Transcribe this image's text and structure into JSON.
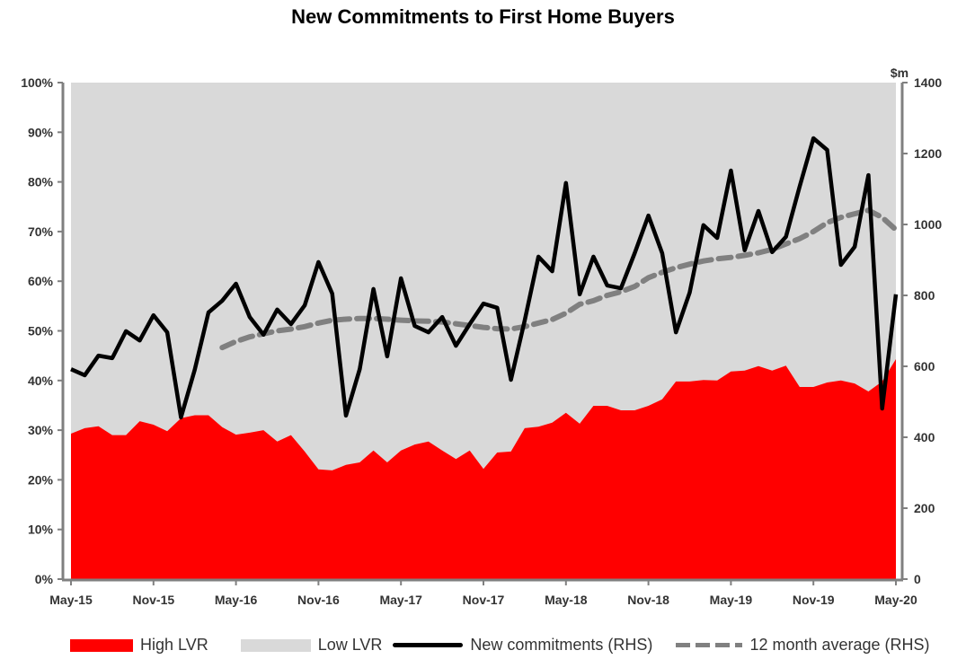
{
  "chart_data": {
    "type": "area",
    "title": "New Commitments to First Home Buyers",
    "right_axis_unit": "$m",
    "x_tick_labels": [
      "May-15",
      "Nov-15",
      "May-16",
      "Nov-16",
      "May-17",
      "Nov-17",
      "May-18",
      "Nov-18",
      "May-19",
      "Nov-19",
      "May-20"
    ],
    "x_start": "May-15",
    "x_end": "May-20",
    "left_ylim": [
      0,
      100
    ],
    "left_ticks": [
      "0%",
      "10%",
      "20%",
      "30%",
      "40%",
      "50%",
      "60%",
      "70%",
      "80%",
      "90%",
      "100%"
    ],
    "right_ylim": [
      0,
      1400
    ],
    "right_ticks": [
      "0",
      "200",
      "400",
      "600",
      "800",
      "1000",
      "1200",
      "1400"
    ],
    "grid": false,
    "legend_placement": "bottom",
    "colors": {
      "high_lvr": "#ff0000",
      "low_lvr": "#d9d9d9",
      "new_commitments": "#000000",
      "avg": "#808080",
      "axis": "#808080"
    },
    "series": [
      {
        "name": "High LVR",
        "axis": "left",
        "type": "area",
        "values": [
          29.3,
          30.4,
          30.8,
          29,
          29,
          31.8,
          31.1,
          29.8,
          32.4,
          33,
          33,
          30.6,
          29.1,
          29.5,
          30,
          27.7,
          29,
          25.7,
          22.1,
          21.9,
          23,
          23.5,
          25.9,
          23.5,
          25.9,
          27.1,
          27.7,
          25.9,
          24.2,
          25.9,
          22.2,
          25.5,
          25.7,
          30.4,
          30.7,
          31.5,
          33.5,
          31.3,
          34.9,
          34.9,
          34,
          34,
          34.9,
          36.2,
          39.8,
          39.8,
          40.1,
          40,
          41.8,
          42,
          42.9,
          42,
          43,
          38.7,
          38.7,
          39.6,
          40,
          39.4,
          37.8,
          39.8,
          44.3
        ]
      },
      {
        "name": "Low LVR",
        "axis": "left",
        "type": "area",
        "note_fill_to": 100
      },
      {
        "name": "New commitments (RHS)",
        "axis": "right",
        "type": "line",
        "values": [
          592,
          575,
          630,
          623,
          699,
          673,
          744,
          696,
          456,
          590,
          752,
          785,
          833,
          739,
          689,
          760,
          719,
          772,
          894,
          805,
          461,
          592,
          818,
          628,
          848,
          714,
          696,
          739,
          658,
          719,
          777,
          765,
          562,
          729,
          909,
          868,
          1117,
          803,
          909,
          828,
          820,
          919,
          1025,
          919,
          696,
          808,
          998,
          962,
          1152,
          927,
          1038,
          922,
          965,
          1107,
          1243,
          1210,
          886,
          937,
          1139,
          481,
          803
        ]
      },
      {
        "name": "12 month average (RHS)",
        "axis": "right",
        "type": "line",
        "values": [
          null,
          null,
          null,
          null,
          null,
          null,
          null,
          null,
          null,
          null,
          null,
          653,
          670,
          683,
          692,
          700,
          705,
          712,
          722,
          730,
          733,
          735,
          735,
          733,
          730,
          728,
          727,
          725,
          720,
          715,
          710,
          706,
          705,
          712,
          722,
          732,
          750,
          775,
          785,
          800,
          810,
          825,
          850,
          865,
          878,
          888,
          897,
          903,
          907,
          913,
          920,
          930,
          945,
          960,
          980,
          1005,
          1020,
          1030,
          1040,
          1020,
          985
        ]
      }
    ]
  }
}
